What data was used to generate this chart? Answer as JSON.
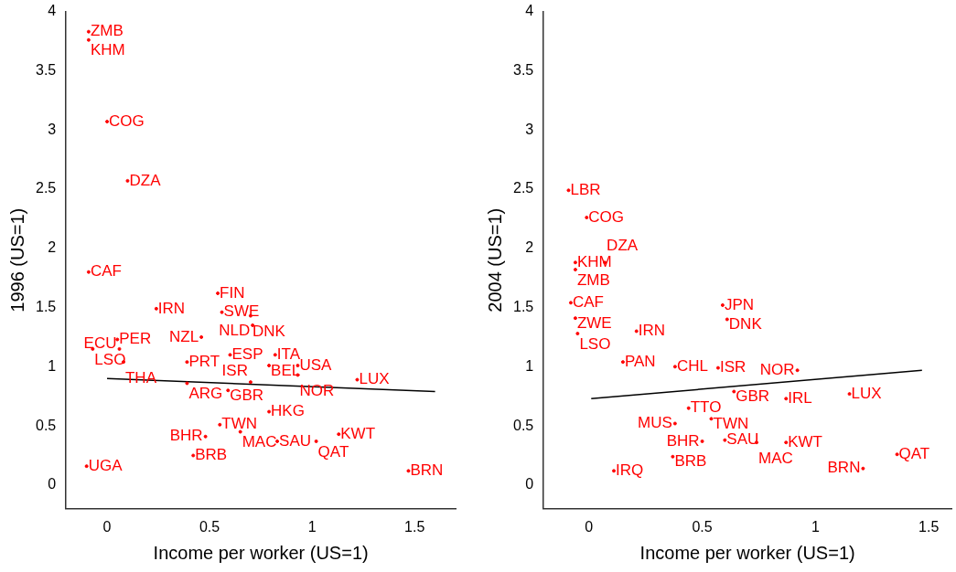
{
  "chart_data": [
    {
      "type": "scatter",
      "xlabel": "Income per worker (US=1)",
      "ylabel": "1996 (US=1)",
      "xlim": [
        -0.2,
        1.7
      ],
      "ylim": [
        -0.2,
        4
      ],
      "xticks": [
        0,
        0.5,
        1,
        1.5
      ],
      "yticks": [
        0,
        0.5,
        1,
        1.5,
        2,
        2.5,
        3,
        3.5,
        4
      ],
      "marker": "circle",
      "legend": false,
      "grid": false,
      "series": [
        {
          "color": "#ff0000",
          "x": [
            -0.09,
            -0.09,
            0.0,
            0.1,
            -0.09,
            0.54,
            0.24,
            0.56,
            0.7,
            0.71,
            0.46,
            0.05,
            -0.07,
            0.06,
            0.6,
            0.82,
            0.39,
            0.08,
            0.79,
            0.93,
            0.93,
            1.22,
            0.7,
            0.59,
            0.39,
            0.79,
            0.55,
            0.65,
            0.48,
            1.13,
            0.83,
            1.02,
            0.42,
            -0.1,
            1.47
          ],
          "values": [
            3.83,
            3.76,
            3.07,
            2.57,
            1.8,
            1.62,
            1.49,
            1.46,
            1.43,
            1.35,
            1.25,
            1.23,
            1.15,
            1.15,
            1.1,
            1.1,
            1.04,
            1.04,
            1.01,
            1.01,
            0.93,
            0.89,
            0.87,
            0.8,
            0.86,
            0.62,
            0.51,
            0.45,
            0.41,
            0.43,
            0.37,
            0.37,
            0.25,
            0.16,
            0.12
          ],
          "value_labels": [
            "ZMB",
            "KHM",
            "COG",
            "DZA",
            "CAF",
            "FIN",
            "IRN",
            "SWE",
            "DNK",
            "NLD",
            "NZL",
            "PER",
            "LSO",
            "ECU",
            "ESP",
            "ITA",
            "PRT",
            "THA",
            "BEL",
            "USA",
            "NOR",
            "LUX",
            "ISR",
            "GBR",
            "ARG",
            "HKG",
            "TWN",
            "MAC",
            "BHR",
            "KWT",
            "SAU",
            "QAT",
            "BRB",
            "UGA",
            "BRN"
          ]
        },
        {
          "type": "line",
          "marker": "none",
          "color": "#000000",
          "x": [
            0,
            1.6
          ],
          "values": [
            0.9,
            0.79
          ]
        }
      ]
    },
    {
      "type": "scatter",
      "xlabel": "Income per worker (US=1)",
      "ylabel": "2004 (US=1)",
      "xlim": [
        -0.2,
        1.6
      ],
      "ylim": [
        -0.2,
        4
      ],
      "xticks": [
        0,
        0.5,
        1,
        1.5
      ],
      "yticks": [
        0,
        0.5,
        1,
        1.5,
        2,
        2.5,
        3,
        3.5,
        4
      ],
      "marker": "circle",
      "legend": false,
      "grid": false,
      "series": [
        {
          "color": "#ff0000",
          "x": [
            -0.09,
            -0.01,
            -0.06,
            0.07,
            -0.06,
            -0.08,
            0.59,
            -0.06,
            0.61,
            -0.05,
            0.21,
            0.38,
            0.57,
            0.15,
            0.92,
            1.15,
            0.87,
            0.64,
            0.44,
            0.54,
            0.38,
            0.6,
            0.74,
            0.87,
            0.5,
            0.37,
            1.36,
            1.21,
            0.11
          ],
          "values": [
            2.49,
            2.26,
            1.88,
            1.88,
            1.82,
            1.54,
            1.52,
            1.41,
            1.4,
            1.28,
            1.3,
            1.0,
            0.99,
            1.04,
            0.97,
            0.77,
            0.73,
            0.79,
            0.65,
            0.56,
            0.52,
            0.38,
            0.36,
            0.36,
            0.37,
            0.24,
            0.26,
            0.14,
            0.12
          ],
          "value_labels": [
            "LBR",
            "COG",
            "KHM",
            "DZA",
            "ZMB",
            "CAF",
            "JPN",
            "ZWE",
            "DNK",
            "LSO",
            "IRN",
            "CHL",
            "ISR",
            "PAN",
            "NOR",
            "LUX",
            "IRL",
            "GBR",
            "TTO",
            "TWN",
            "MUS",
            "SAU",
            "MAC",
            "KWT",
            "BHR",
            "BRB",
            "QAT",
            "BRN",
            "IRQ"
          ]
        },
        {
          "type": "line",
          "marker": "none",
          "color": "#000000",
          "x": [
            0.01,
            1.47
          ],
          "values": [
            0.73,
            0.97
          ]
        }
      ]
    }
  ]
}
